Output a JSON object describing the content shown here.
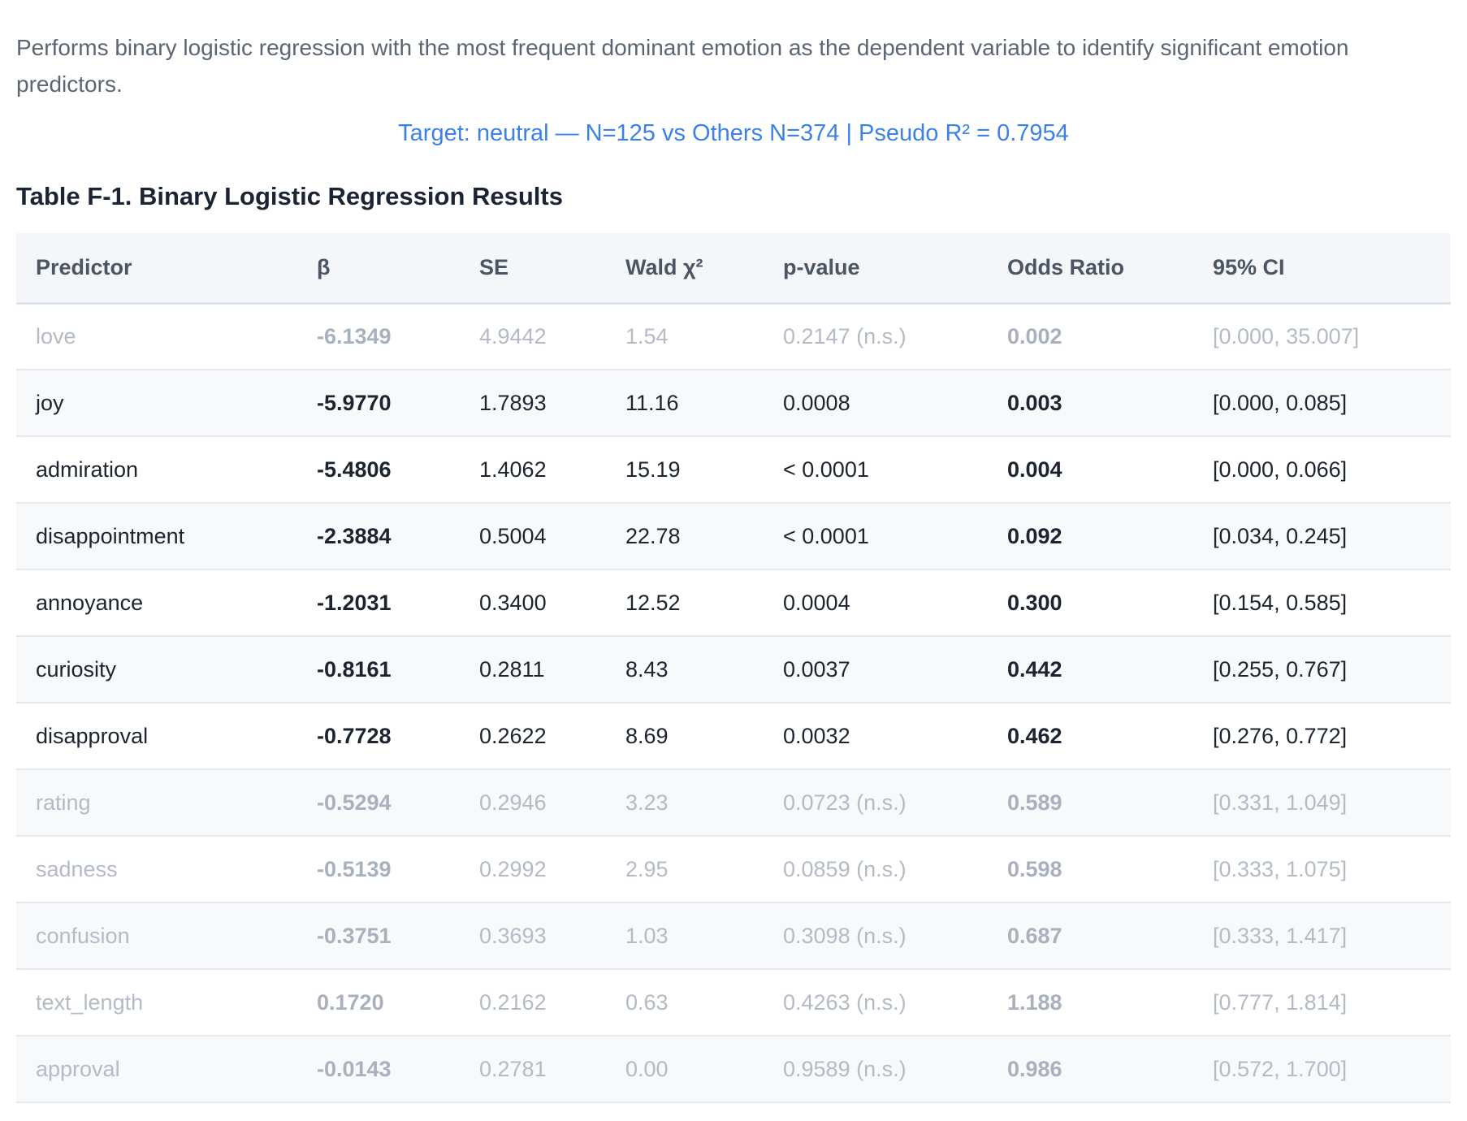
{
  "description": "Performs binary logistic regression with the most frequent dominant emotion as the dependent variable to identify significant emotion predictors.",
  "subtitle": "Target: neutral — N=125 vs Others N=374 | Pseudo R² = 0.7954",
  "table_title": "Table F-1. Binary Logistic Regression Results",
  "columns": [
    "Predictor",
    "β",
    "SE",
    "Wald χ²",
    "p-value",
    "Odds Ratio",
    "95% CI"
  ],
  "rows": [
    {
      "predictor": "love",
      "beta": "-6.1349",
      "se": "4.9442",
      "wald": "1.54",
      "p": "0.2147 (n.s.)",
      "or": "0.002",
      "ci": "[0.000, 35.007]",
      "significant": false
    },
    {
      "predictor": "joy",
      "beta": "-5.9770",
      "se": "1.7893",
      "wald": "11.16",
      "p": "0.0008",
      "or": "0.003",
      "ci": "[0.000, 0.085]",
      "significant": true
    },
    {
      "predictor": "admiration",
      "beta": "-5.4806",
      "se": "1.4062",
      "wald": "15.19",
      "p": "< 0.0001",
      "or": "0.004",
      "ci": "[0.000, 0.066]",
      "significant": true
    },
    {
      "predictor": "disappointment",
      "beta": "-2.3884",
      "se": "0.5004",
      "wald": "22.78",
      "p": "< 0.0001",
      "or": "0.092",
      "ci": "[0.034, 0.245]",
      "significant": true
    },
    {
      "predictor": "annoyance",
      "beta": "-1.2031",
      "se": "0.3400",
      "wald": "12.52",
      "p": "0.0004",
      "or": "0.300",
      "ci": "[0.154, 0.585]",
      "significant": true
    },
    {
      "predictor": "curiosity",
      "beta": "-0.8161",
      "se": "0.2811",
      "wald": "8.43",
      "p": "0.0037",
      "or": "0.442",
      "ci": "[0.255, 0.767]",
      "significant": true
    },
    {
      "predictor": "disapproval",
      "beta": "-0.7728",
      "se": "0.2622",
      "wald": "8.69",
      "p": "0.0032",
      "or": "0.462",
      "ci": "[0.276, 0.772]",
      "significant": true
    },
    {
      "predictor": "rating",
      "beta": "-0.5294",
      "se": "0.2946",
      "wald": "3.23",
      "p": "0.0723 (n.s.)",
      "or": "0.589",
      "ci": "[0.331, 1.049]",
      "significant": false
    },
    {
      "predictor": "sadness",
      "beta": "-0.5139",
      "se": "0.2992",
      "wald": "2.95",
      "p": "0.0859 (n.s.)",
      "or": "0.598",
      "ci": "[0.333, 1.075]",
      "significant": false
    },
    {
      "predictor": "confusion",
      "beta": "-0.3751",
      "se": "0.3693",
      "wald": "1.03",
      "p": "0.3098 (n.s.)",
      "or": "0.687",
      "ci": "[0.333, 1.417]",
      "significant": false
    },
    {
      "predictor": "text_length",
      "beta": "0.1720",
      "se": "0.2162",
      "wald": "0.63",
      "p": "0.4263 (n.s.)",
      "or": "1.188",
      "ci": "[0.777, 1.814]",
      "significant": false
    },
    {
      "predictor": "approval",
      "beta": "-0.0143",
      "se": "0.2781",
      "wald": "0.00",
      "p": "0.9589 (n.s.)",
      "or": "0.986",
      "ci": "[0.572, 1.700]",
      "significant": false
    }
  ],
  "colors": {
    "subtitle": "#3b82e8",
    "significant_text": "#1c2430",
    "non_significant_text": "#b3bbc7",
    "header_bg": "#f4f6f9"
  }
}
